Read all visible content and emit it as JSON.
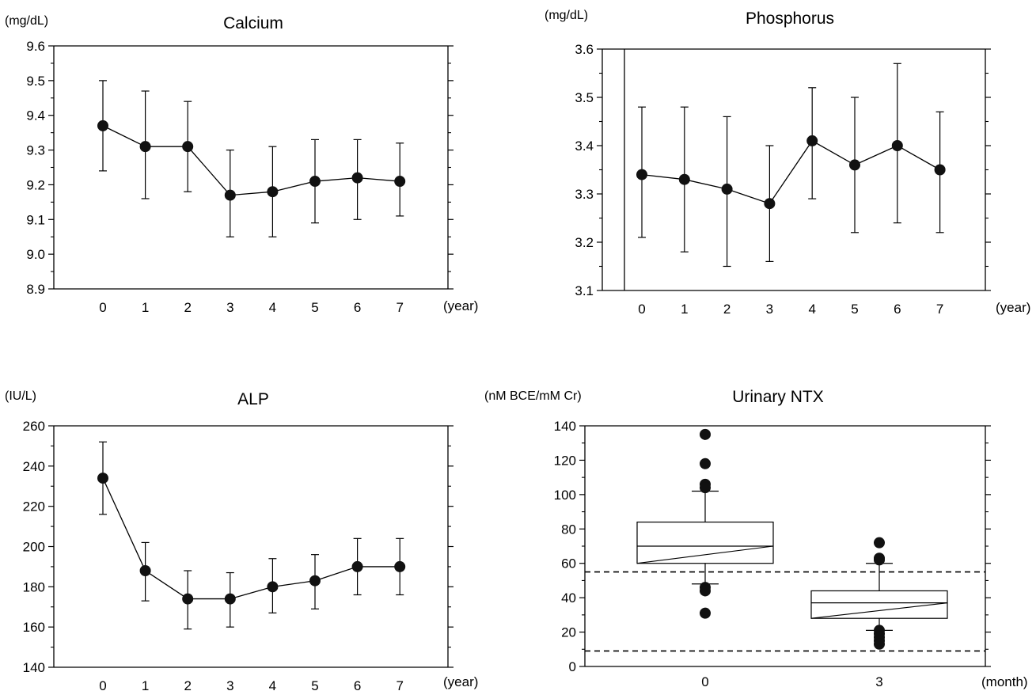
{
  "chart_data": [
    {
      "type": "line",
      "title": "Calcium",
      "ylabel": "(mg/dL)",
      "xlabel": "(year)",
      "x": [
        0,
        1,
        2,
        3,
        4,
        5,
        6,
        7
      ],
      "ylim": [
        8.9,
        9.6
      ],
      "yticks": [
        "8.9",
        "9.0",
        "9.1",
        "9.2",
        "9.3",
        "9.4",
        "9.5",
        "9.6"
      ],
      "series": [
        {
          "values": [
            9.37,
            9.31,
            9.31,
            9.17,
            9.18,
            9.21,
            9.22,
            9.21
          ],
          "err_low": [
            9.24,
            9.16,
            9.18,
            9.05,
            9.05,
            9.09,
            9.1,
            9.11
          ],
          "err_high": [
            9.5,
            9.47,
            9.44,
            9.3,
            9.31,
            9.33,
            9.33,
            9.32
          ]
        }
      ],
      "grid": false
    },
    {
      "type": "line",
      "title": "Phosphorus",
      "ylabel": "(mg/dL)",
      "xlabel": "(year)",
      "x": [
        0,
        1,
        2,
        3,
        4,
        5,
        6,
        7
      ],
      "ylim": [
        3.1,
        3.6
      ],
      "yticks": [
        "3.1",
        "3.2",
        "3.3",
        "3.4",
        "3.5",
        "3.6"
      ],
      "series": [
        {
          "values": [
            3.34,
            3.33,
            3.31,
            3.28,
            3.41,
            3.36,
            3.4,
            3.35
          ],
          "err_low": [
            3.21,
            3.18,
            3.15,
            3.16,
            3.29,
            3.22,
            3.24,
            3.22
          ],
          "err_high": [
            3.48,
            3.48,
            3.46,
            3.4,
            3.52,
            3.5,
            3.57,
            3.47
          ]
        }
      ],
      "grid": false
    },
    {
      "type": "line",
      "title": "ALP",
      "ylabel": "(IU/L)",
      "xlabel": "(year)",
      "x": [
        0,
        1,
        2,
        3,
        4,
        5,
        6,
        7
      ],
      "ylim": [
        140,
        260
      ],
      "yticks": [
        "140",
        "160",
        "180",
        "200",
        "220",
        "240",
        "260"
      ],
      "series": [
        {
          "values": [
            234,
            188,
            174,
            174,
            180,
            183,
            190,
            190
          ],
          "err_low": [
            216,
            173,
            159,
            160,
            167,
            169,
            176,
            176
          ],
          "err_high": [
            252,
            202,
            188,
            187,
            194,
            196,
            204,
            204
          ]
        }
      ],
      "grid": false
    },
    {
      "type": "box",
      "title": "Urinary NTX",
      "ylabel": "(nM BCE/mM Cr)",
      "xlabel": "(month)",
      "categories": [
        "0",
        "3"
      ],
      "ylim": [
        0,
        140
      ],
      "yticks": [
        "0",
        "20",
        "40",
        "60",
        "80",
        "100",
        "120",
        "140"
      ],
      "boxes": [
        {
          "category": "0",
          "whisker_low": 48,
          "q1": 60,
          "median": 70,
          "q3": 84,
          "whisker_high": 102,
          "outliers": [
            135,
            118,
            106,
            104,
            46,
            44,
            31
          ]
        },
        {
          "category": "3",
          "whisker_low": 21,
          "q1": 28,
          "median": 37,
          "q3": 44,
          "whisker_high": 60,
          "outliers": [
            72,
            63,
            62,
            21,
            19,
            17,
            15,
            13
          ]
        }
      ],
      "reference_lines": [
        55,
        9
      ],
      "grid": false
    }
  ]
}
